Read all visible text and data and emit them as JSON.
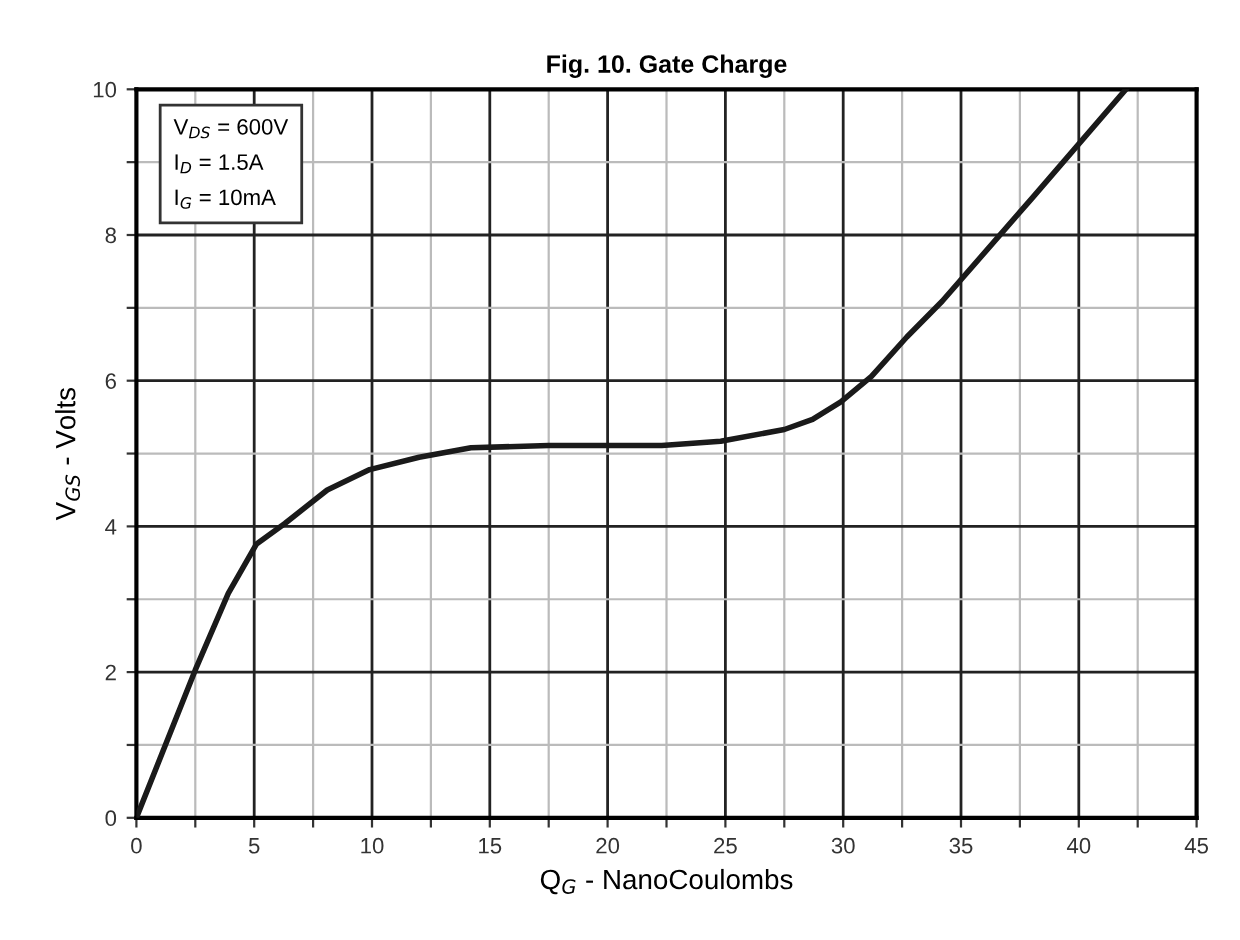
{
  "chart_data": {
    "type": "line",
    "title": "Fig. 10. Gate Charge",
    "xlabel": "Q$_{G}$ - NanoCoulombs",
    "ylabel": "V$_{GS}$ - Volts",
    "annotations": [
      "V$_{DS}$ = 600V",
      "I$_{D}$ = 1.5A",
      "I$_{G}$ = 10mA"
    ],
    "x": [
      0,
      2.5,
      3.9,
      5.1,
      6.3,
      8.1,
      9.9,
      12.0,
      14.2,
      17.5,
      22.3,
      24.8,
      27.5,
      28.7,
      29.9,
      31.2,
      32.7,
      34.2,
      38.0,
      42.0
    ],
    "series": [
      {
        "color": "#1a1a1a",
        "values": [
          0,
          2.03,
          3.08,
          3.76,
          4.04,
          4.5,
          4.78,
          4.95,
          5.08,
          5.11,
          5.11,
          5.17,
          5.33,
          5.47,
          5.71,
          6.06,
          6.6,
          7.09,
          8.5,
          10.0
        ]
      }
    ],
    "xlim": [
      0,
      45
    ],
    "ylim": [
      0,
      10
    ],
    "xticks": [
      0,
      {
        "value": 2.5,
        "label": null
      },
      5,
      {
        "value": 7.5,
        "label": null
      },
      10,
      {
        "value": 12.5,
        "label": null
      },
      15,
      {
        "value": 17.5,
        "label": null
      },
      20,
      {
        "value": 22.5,
        "label": null
      },
      25,
      {
        "value": 27.5,
        "label": null
      },
      30,
      {
        "value": 32.5,
        "label": null
      },
      35,
      {
        "value": 37.5,
        "label": null
      },
      40,
      {
        "value": 42.5,
        "label": null
      },
      45
    ],
    "yticks": [
      0,
      {
        "value": 1,
        "label": null
      },
      2,
      {
        "value": 3,
        "label": null
      },
      4,
      {
        "value": 5,
        "label": null
      },
      6,
      {
        "value": 7,
        "label": null
      },
      8,
      {
        "value": 9,
        "label": null
      },
      10
    ],
    "grid": true,
    "marker": "none",
    "line_style": "solid",
    "legend": false
  }
}
